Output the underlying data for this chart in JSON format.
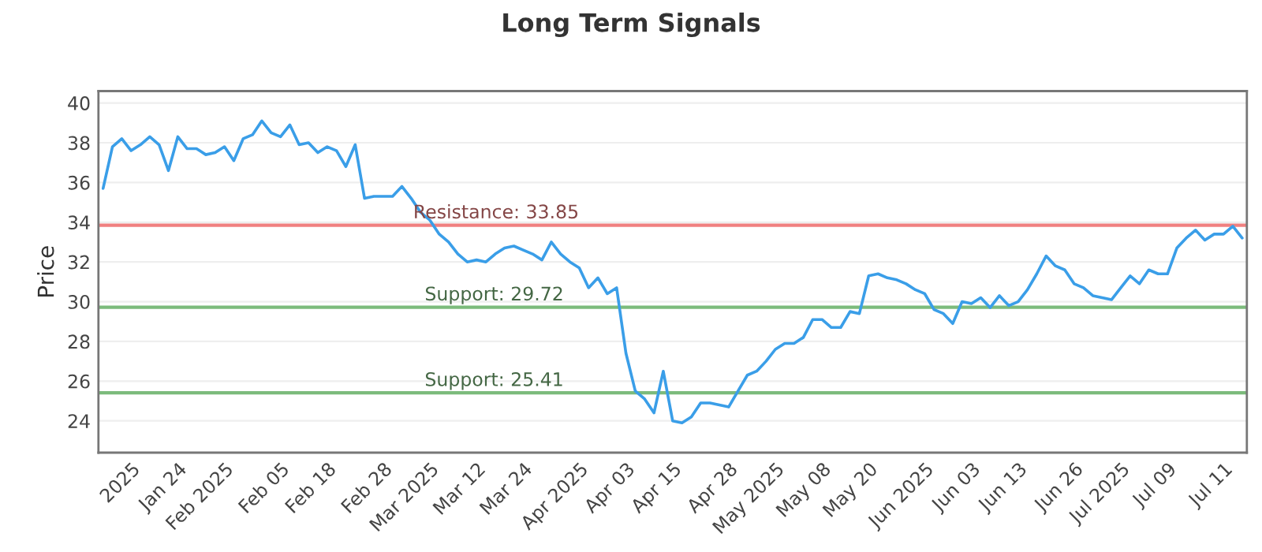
{
  "chart_data": {
    "type": "line",
    "title": "Long Term Signals",
    "ylabel": "Price",
    "categories": [
      null,
      null,
      null,
      "2025",
      null,
      null,
      null,
      null,
      "Jan 24",
      null,
      null,
      null,
      null,
      "Feb 2025",
      null,
      null,
      null,
      null,
      null,
      "Feb 05",
      null,
      null,
      null,
      null,
      "Feb 18",
      null,
      null,
      null,
      null,
      null,
      "Feb 28",
      null,
      null,
      null,
      null,
      "Mar 2025",
      null,
      null,
      null,
      null,
      "Mar 12",
      null,
      null,
      null,
      null,
      "Mar 24",
      null,
      null,
      null,
      null,
      null,
      "Apr 2025",
      null,
      null,
      null,
      null,
      "Apr 03",
      null,
      null,
      null,
      null,
      "Apr 15",
      null,
      null,
      null,
      null,
      null,
      "Apr 28",
      null,
      null,
      null,
      null,
      "May 2025",
      null,
      null,
      null,
      null,
      "May 08",
      null,
      null,
      null,
      null,
      "May 20",
      null,
      null,
      null,
      null,
      null,
      "Jun 2025",
      null,
      null,
      null,
      null,
      "Jun 03",
      null,
      null,
      null,
      null,
      "Jun 13",
      null,
      null,
      null,
      null,
      null,
      "Jun 26",
      null,
      null,
      null,
      null,
      "Jul 2025",
      null,
      null,
      null,
      null,
      "Jul 09",
      null,
      null,
      null,
      null,
      null,
      "Jul 11",
      null,
      null
    ],
    "series": [
      {
        "color": "#3a9ee8",
        "values": [
          35.7,
          37.8,
          38.2,
          37.6,
          37.9,
          38.3,
          37.9,
          36.6,
          38.3,
          37.7,
          37.7,
          37.4,
          37.5,
          37.8,
          37.1,
          38.2,
          38.4,
          39.1,
          38.5,
          38.3,
          38.9,
          37.9,
          38.0,
          37.5,
          37.8,
          37.6,
          36.8,
          37.9,
          35.2,
          35.3,
          35.3,
          35.3,
          35.8,
          35.2,
          34.5,
          34.1,
          33.4,
          33.0,
          32.4,
          32.0,
          32.1,
          32.0,
          32.4,
          32.7,
          32.8,
          32.6,
          32.4,
          32.1,
          33.0,
          32.4,
          32.0,
          31.7,
          30.7,
          31.2,
          30.4,
          30.7,
          27.4,
          25.5,
          25.1,
          24.4,
          26.5,
          24.0,
          23.9,
          24.2,
          24.9,
          24.9,
          24.8,
          24.7,
          25.5,
          26.3,
          26.5,
          27.0,
          27.6,
          27.9,
          27.9,
          28.2,
          29.1,
          29.1,
          28.7,
          28.7,
          29.5,
          29.4,
          31.3,
          31.4,
          31.2,
          31.1,
          30.9,
          30.6,
          30.4,
          29.6,
          29.4,
          28.9,
          30.0,
          29.9,
          30.2,
          29.7,
          30.3,
          29.8,
          30.0,
          30.6,
          31.4,
          32.3,
          31.8,
          31.6,
          30.9,
          30.7,
          30.3,
          30.2,
          30.1,
          30.7,
          31.3,
          30.9,
          31.6,
          31.4,
          31.4,
          32.7,
          33.2,
          33.6,
          33.1,
          33.4,
          33.4,
          33.8,
          33.2
        ]
      }
    ],
    "ylim": [
      22.4,
      40.6
    ],
    "yticks": [
      24,
      26,
      28,
      30,
      32,
      34,
      36,
      38,
      40
    ],
    "grid": "y",
    "ref_lines": [
      {
        "axis": "y",
        "value": 33.85,
        "label": "Resistance: 33.85",
        "color": "#f08080"
      },
      {
        "axis": "y",
        "value": 29.72,
        "label": "Support: 29.72",
        "color": "#7cbb7c"
      },
      {
        "axis": "y",
        "value": 25.41,
        "label": "Support: 25.41",
        "color": "#7cbb7c"
      }
    ]
  }
}
